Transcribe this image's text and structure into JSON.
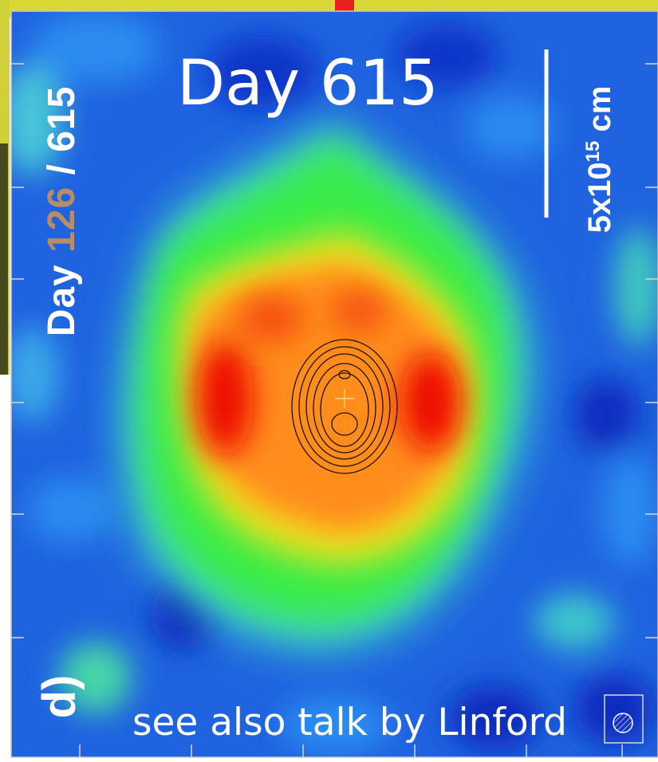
{
  "title": "Day 615",
  "panel_label": {
    "prefix": "Day ",
    "days": "126",
    "separator": " / ",
    "second_day": "615"
  },
  "scale_bar": {
    "base": "5x10",
    "exponent": "15",
    "unit": " cm"
  },
  "panel_letter": "d)",
  "caption": "see also talk by Linford",
  "colors": {
    "map_background": "#1f63e0",
    "map_green": "#38ec4a",
    "map_orange": "#ff8d1a",
    "map_red": "#ee0a05",
    "contour": "#1a1008",
    "slide_yellow": "#d9d836",
    "slide_olive": "#474a1e"
  },
  "icons": {
    "beam": "hatched-circle-icon",
    "center": "cross-icon"
  }
}
